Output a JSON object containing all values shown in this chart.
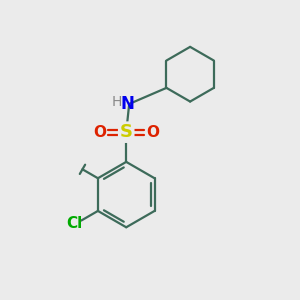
{
  "background_color": "#ebebeb",
  "bond_color": "#3d6b5a",
  "S_color": "#cccc00",
  "O_color": "#dd2200",
  "N_color": "#0000ee",
  "H_color": "#888888",
  "Cl_color": "#00aa00",
  "Me_color": "#3d6b5a",
  "line_width": 1.6,
  "fig_size": [
    3.0,
    3.0
  ],
  "dpi": 100,
  "xlim": [
    0,
    10
  ],
  "ylim": [
    0,
    10
  ]
}
